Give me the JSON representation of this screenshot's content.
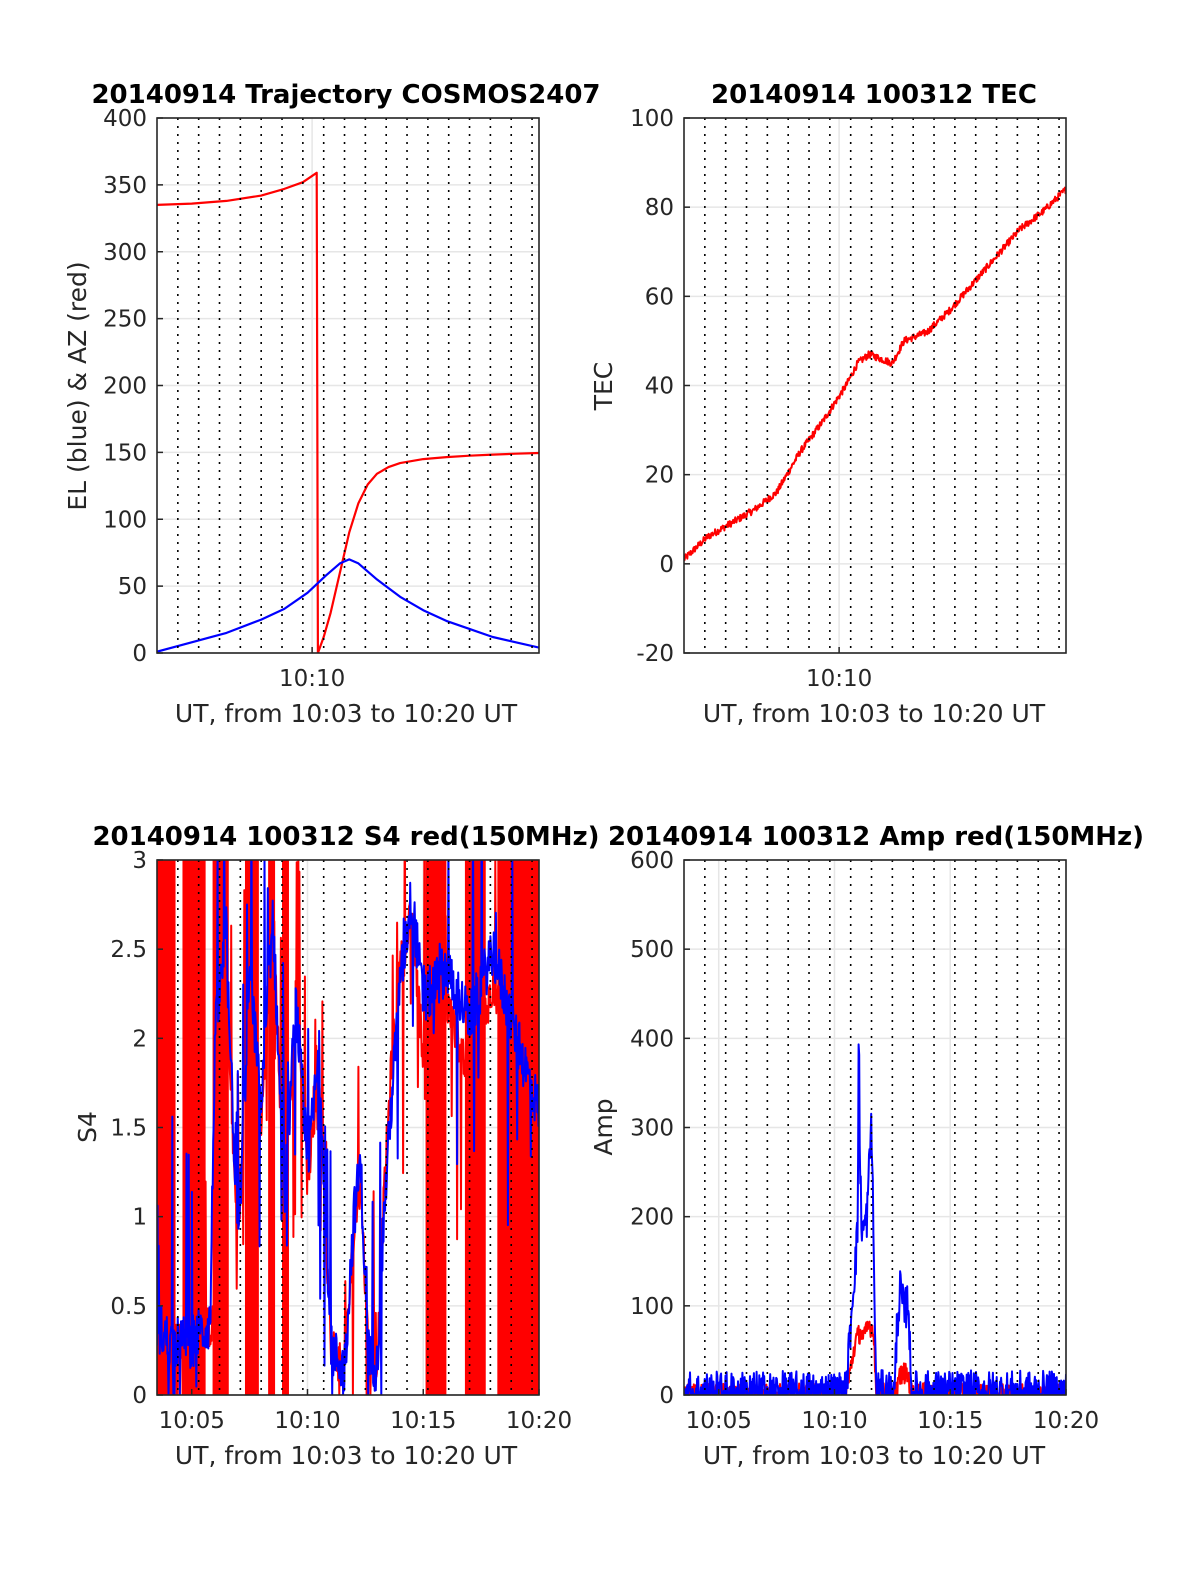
{
  "colors": {
    "el": "#0000ff",
    "az": "#ff0000",
    "red": "#ff0000",
    "blue": "#0000ff",
    "grid": "#e6e6e6",
    "axis": "#262626"
  },
  "chart_data": [
    {
      "id": "trajectory",
      "type": "line",
      "title": "20140914 Trajectory COSMOS2407",
      "xlabel": "UT, from 10:03 to 10:20 UT",
      "ylabel": "EL (blue) & AZ (red)",
      "xlim": [
        3.5,
        20.0
      ],
      "ylim": [
        0,
        400
      ],
      "yticks": [
        0,
        50,
        100,
        150,
        200,
        250,
        300,
        350,
        400
      ],
      "xticks": [
        {
          "value": 10.2,
          "label": "10:10"
        }
      ],
      "vlines_dotted": [
        4.4,
        5.3,
        6.2,
        7.1,
        8.0,
        8.9,
        9.8,
        10.7,
        11.6,
        12.5,
        13.4,
        14.3,
        15.2,
        16.1,
        17.0,
        17.9,
        18.8,
        19.7
      ],
      "series": [
        {
          "color": "red",
          "x": [
            3.5,
            5.0,
            6.5,
            8.0,
            9.0,
            9.8,
            10.4,
            10.45,
            10.7,
            11.0,
            11.4,
            11.8,
            12.2,
            12.6,
            13.0,
            13.5,
            14.0,
            15.0,
            16.0,
            17.0,
            18.0,
            19.0,
            20.0
          ],
          "y": [
            335,
            336,
            338,
            342,
            347,
            352,
            359,
            0,
            12,
            30,
            60,
            90,
            112,
            126,
            134,
            139,
            142,
            145,
            146.5,
            147.5,
            148.3,
            149,
            149.5
          ]
        },
        {
          "color": "blue",
          "x": [
            3.5,
            5.0,
            6.5,
            8.0,
            9.0,
            10.0,
            10.8,
            11.4,
            11.8,
            12.2,
            13.0,
            14.0,
            15.0,
            16.0,
            17.0,
            18.0,
            19.0,
            20.0
          ],
          "y": [
            1,
            8,
            15,
            25,
            33,
            45,
            58,
            67,
            70,
            67,
            55,
            42,
            32,
            24,
            18,
            12,
            8,
            4
          ]
        }
      ]
    },
    {
      "id": "tec",
      "type": "line",
      "title": "20140914 100312 TEC",
      "xlabel": "UT, from 10:03 to 10:20 UT",
      "ylabel": "TEC",
      "xlim": [
        3.5,
        20.0
      ],
      "ylim": [
        -20,
        100
      ],
      "yticks": [
        -20,
        0,
        20,
        40,
        60,
        80,
        100
      ],
      "xticks": [
        {
          "value": 10.2,
          "label": "10:10"
        }
      ],
      "vlines_dotted": [
        4.4,
        5.3,
        6.2,
        7.1,
        8.0,
        8.9,
        9.8,
        10.7,
        11.6,
        12.5,
        13.4,
        14.3,
        15.2,
        16.1,
        17.0,
        17.9,
        18.8,
        19.7
      ],
      "noise": 0.8,
      "series": [
        {
          "color": "red",
          "x": [
            3.5,
            4.5,
            5.5,
            6.5,
            7.5,
            8.5,
            9.5,
            10.5,
            11.0,
            11.5,
            12.0,
            12.5,
            13.0,
            14.0,
            15.0,
            16.0,
            17.0,
            18.0,
            19.0,
            20.0
          ],
          "y": [
            1,
            6,
            9,
            12,
            16,
            25,
            32,
            40,
            45,
            47,
            46,
            45,
            50,
            52,
            57,
            63,
            69,
            75,
            79,
            84
          ]
        }
      ]
    },
    {
      "id": "s4",
      "type": "line",
      "title": "20140914 100312 S4 red(150MHz)",
      "xlabel": "UT, from 10:03 to 10:20 UT",
      "ylabel": "S4",
      "xlim": [
        3.5,
        20.0
      ],
      "ylim": [
        0,
        3
      ],
      "yticks": [
        0,
        0.5,
        1,
        1.5,
        2,
        2.5,
        3
      ],
      "ytick_labels": [
        "0",
        "0.5",
        "1",
        "1.5",
        "2",
        "2.5",
        "3"
      ],
      "xticks": [
        {
          "value": 5,
          "label": "10:05"
        },
        {
          "value": 10,
          "label": "10:10"
        },
        {
          "value": 15,
          "label": "10:15"
        },
        {
          "value": 20,
          "label": "10:20"
        }
      ],
      "vlines_dotted": [
        4.4,
        5.3,
        6.2,
        7.1,
        8.0,
        8.9,
        9.8,
        10.7,
        11.6,
        12.5,
        13.4,
        14.3,
        15.2,
        16.1,
        17.0,
        17.9,
        18.8,
        19.7
      ],
      "red_fill_bands": [
        [
          3.5,
          4.3
        ],
        [
          4.6,
          5.6
        ],
        [
          5.9,
          6.6
        ],
        [
          7.3,
          7.9
        ],
        [
          8.3,
          8.6
        ],
        [
          8.9,
          9.2
        ],
        [
          15.1,
          16.0
        ],
        [
          16.8,
          17.7
        ],
        [
          18.2,
          20.0
        ]
      ],
      "series": [
        {
          "color": "red",
          "noise": 0.12,
          "x": [
            3.5,
            4.0,
            5.0,
            6.0,
            6.5,
            7.0,
            7.5,
            8.0,
            8.5,
            9.0,
            9.5,
            10.0,
            10.5,
            10.8,
            11.0,
            11.3,
            11.6,
            12.0,
            12.3,
            12.6,
            13.0,
            13.3,
            13.6,
            14.0,
            14.5,
            15.0,
            16.0,
            17.0,
            18.0,
            19.0,
            20.0
          ],
          "y": [
            0.35,
            0.3,
            0.32,
            0.4,
            2.2,
            0.8,
            2.5,
            1.5,
            2.8,
            1.0,
            2.3,
            1.2,
            1.8,
            0.9,
            0.3,
            0.2,
            0.15,
            0.9,
            1.2,
            0.3,
            0.15,
            1.1,
            1.8,
            2.4,
            2.7,
            1.9,
            2.2,
            1.8,
            2.3,
            2.0,
            2.4
          ]
        },
        {
          "color": "blue",
          "noise": 0.15,
          "x": [
            3.5,
            4.0,
            5.0,
            5.8,
            6.0,
            6.5,
            7.0,
            7.5,
            8.0,
            8.5,
            9.0,
            9.5,
            10.0,
            10.5,
            10.8,
            11.0,
            11.3,
            11.6,
            12.0,
            12.3,
            12.6,
            13.0,
            13.3,
            13.6,
            14.0,
            14.5,
            15.0,
            16.0,
            17.0,
            18.0,
            19.0,
            20.0
          ],
          "y": [
            0.4,
            0.3,
            0.3,
            0.4,
            2.0,
            2.6,
            0.8,
            2.4,
            1.6,
            2.7,
            1.1,
            2.2,
            1.3,
            1.9,
            1.0,
            0.25,
            0.2,
            0.15,
            1.0,
            1.3,
            0.25,
            0.15,
            1.0,
            1.6,
            2.3,
            2.8,
            2.2,
            2.4,
            2.1,
            2.5,
            2.0,
            1.6
          ]
        }
      ]
    },
    {
      "id": "amp",
      "type": "line",
      "title": "20140914 100312 Amp red(150MHz)",
      "xlabel": "UT, from 10:03 to 10:20 UT",
      "ylabel": "Amp",
      "xlim": [
        3.5,
        20.0
      ],
      "ylim": [
        0,
        600
      ],
      "yticks": [
        0,
        100,
        200,
        300,
        400,
        500,
        600
      ],
      "xticks": [
        {
          "value": 5,
          "label": "10:05"
        },
        {
          "value": 10,
          "label": "10:10"
        },
        {
          "value": 15,
          "label": "10:15"
        },
        {
          "value": 20,
          "label": "10:20"
        }
      ],
      "vlines_dotted": [
        4.4,
        5.3,
        6.2,
        7.1,
        8.0,
        8.9,
        9.8,
        10.7,
        11.6,
        12.5,
        13.4,
        14.3,
        15.2,
        16.1,
        17.0,
        17.9,
        18.8,
        19.7
      ],
      "series": [
        {
          "color": "red",
          "noise": 12,
          "x": [
            3.5,
            10.5,
            10.7,
            10.9,
            11.1,
            11.3,
            11.5,
            11.7,
            11.8,
            12.6,
            12.8,
            13.0,
            13.2,
            13.3,
            20.0
          ],
          "y": [
            1,
            1,
            30,
            60,
            70,
            65,
            80,
            70,
            2,
            2,
            20,
            25,
            20,
            2,
            1
          ]
        },
        {
          "color": "blue",
          "noise": 25,
          "x": [
            3.5,
            10.5,
            10.6,
            10.8,
            11.0,
            11.05,
            11.1,
            11.2,
            11.4,
            11.6,
            11.7,
            11.8,
            12.6,
            12.7,
            12.85,
            13.0,
            13.2,
            13.3,
            20.0
          ],
          "y": [
            2,
            2,
            40,
            120,
            180,
            435,
            250,
            180,
            200,
            310,
            150,
            3,
            3,
            80,
            120,
            90,
            110,
            3,
            2
          ]
        }
      ]
    }
  ]
}
